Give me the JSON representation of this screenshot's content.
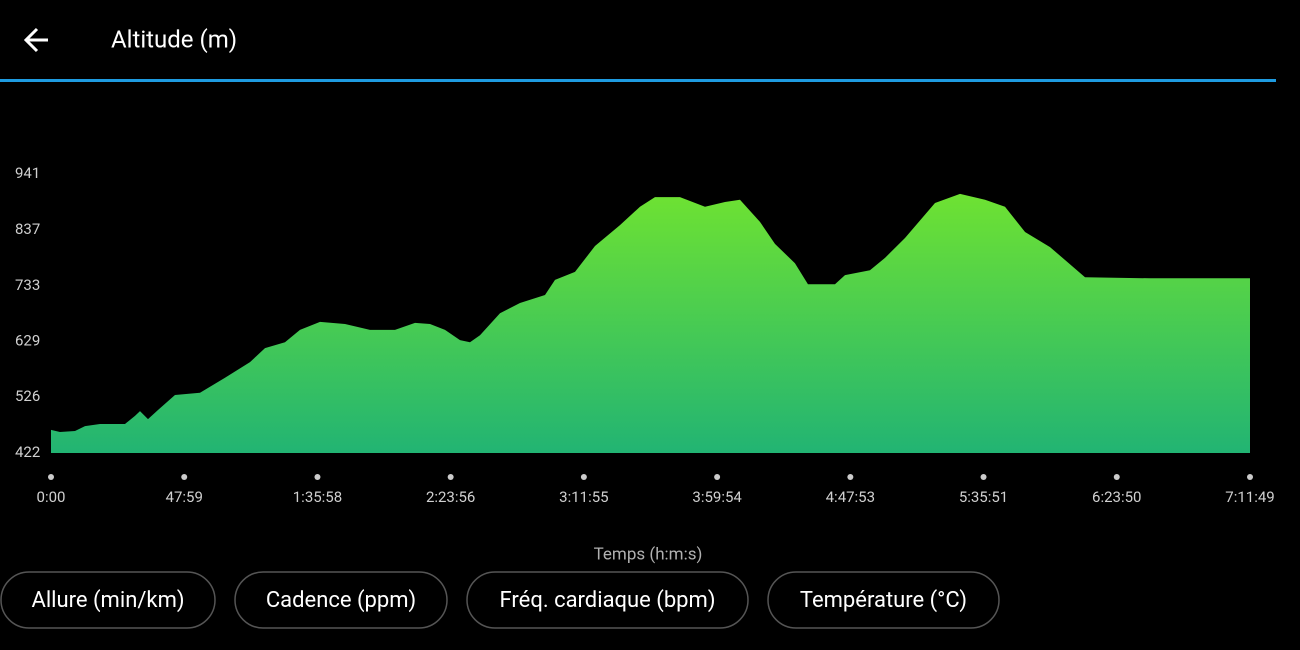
{
  "chart_data": {
    "type": "area",
    "title": "Altitude (m)",
    "x_label": "Temps (h:m:s)",
    "x": [
      0,
      194,
      519,
      735,
      1059,
      1599,
      1815,
      1923,
      2096,
      2312,
      2679,
      3220,
      3760,
      4300,
      4624,
      5056,
      5380,
      5813,
      6353,
      6893,
      7433,
      7866,
      8190,
      8514,
      8838,
      9054,
      9270,
      9702,
      10134,
      10675,
      10891,
      11323,
      11755,
      12295,
      12727,
      13051,
      13591,
      14132,
      14564,
      14888,
      15320,
      15644,
      16076,
      16357,
      16941,
      17157,
      17697,
      18022,
      18454,
      19102,
      19643,
      20183,
      20615,
      21048,
      21588,
      21912,
      22344,
      23749,
      25909
    ],
    "values": [
      465,
      461,
      463,
      472,
      476,
      476,
      491,
      500,
      485,
      502,
      530,
      534,
      562,
      591,
      617,
      628,
      651,
      666,
      662,
      651,
      651,
      664,
      662,
      651,
      632,
      628,
      641,
      682,
      701,
      716,
      744,
      759,
      807,
      846,
      880,
      898,
      898,
      880,
      889,
      893,
      852,
      811,
      775,
      736,
      736,
      753,
      762,
      785,
      822,
      887,
      904,
      893,
      880,
      833,
      805,
      781,
      749,
      747,
      747
    ],
    "xlim": [
      0,
      25909
    ],
    "xticks": [
      {
        "value": 0,
        "label": "0:00"
      },
      {
        "value": 2879,
        "label": "47:59"
      },
      {
        "value": 5758,
        "label": "1:35:58"
      },
      {
        "value": 8636,
        "label": "2:23:56"
      },
      {
        "value": 11515,
        "label": "3:11:55"
      },
      {
        "value": 14394,
        "label": "3:59:54"
      },
      {
        "value": 17273,
        "label": "4:47:53"
      },
      {
        "value": 20151,
        "label": "5:35:51"
      },
      {
        "value": 23030,
        "label": "6:23:50"
      },
      {
        "value": 25909,
        "label": "7:11:49"
      }
    ],
    "ylim": [
      422,
      941
    ],
    "yticks": [
      422,
      526,
      629,
      733,
      837,
      941
    ],
    "grid": false,
    "color_top": "#6ee232",
    "color_bottom": "#22b473"
  },
  "buttons": [
    "Allure (min/km)",
    "Cadence (ppm)",
    "Fréq. cardiaque (bpm)",
    "Température (°C)"
  ]
}
